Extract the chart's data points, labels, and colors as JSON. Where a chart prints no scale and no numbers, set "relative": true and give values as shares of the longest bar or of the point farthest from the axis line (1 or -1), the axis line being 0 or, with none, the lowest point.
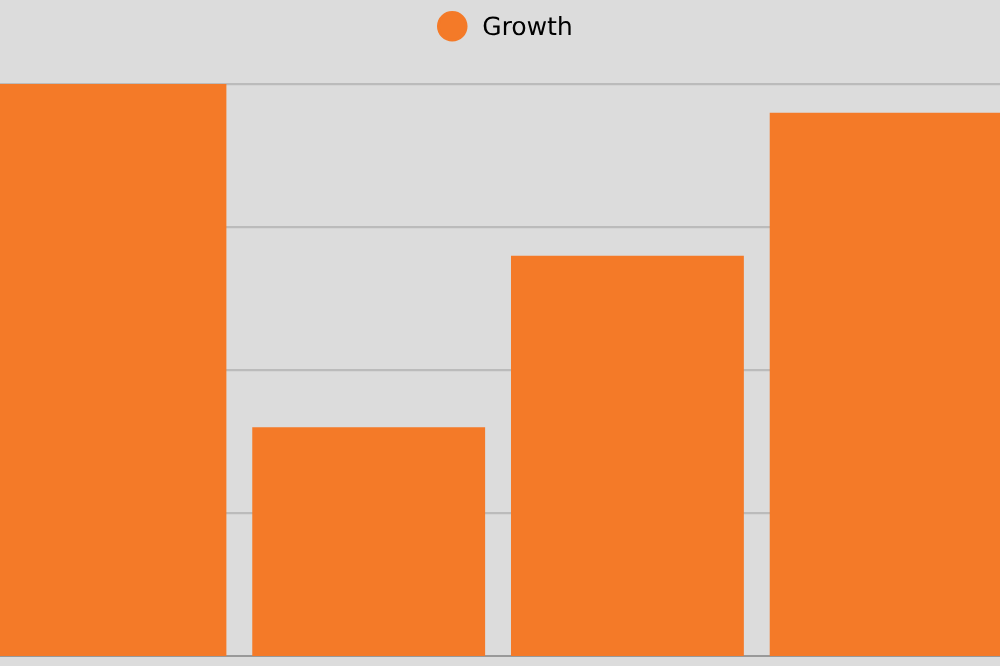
{
  "chart_data": {
    "type": "bar",
    "relative": true,
    "categories": [
      null,
      null,
      null,
      null
    ],
    "series": [
      {
        "name": "Growth",
        "color": "#f47a28",
        "values": [
          1,
          0.4,
          0.7,
          0.95
        ]
      }
    ],
    "grid": "y",
    "legend": "top"
  }
}
